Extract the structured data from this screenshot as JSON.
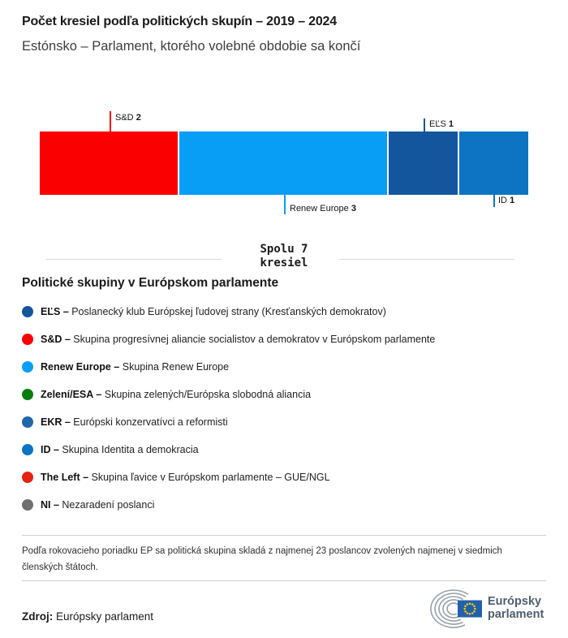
{
  "header": {
    "title": "Počet kresiel podľa politických skupín – 2019 – 2024",
    "subtitle": "Estónsko – Parlament, ktorého volebné obdobie sa končí"
  },
  "chart_data": {
    "type": "bar",
    "orientation": "horizontal-stacked",
    "title": "Počet kresiel podľa politických skupín – 2019 – 2024",
    "subtitle": "Estónsko – Parlament, ktorého volebné obdobie sa končí",
    "total_seats": 7,
    "total_label": "Spolu 7 kresiel",
    "segments": [
      {
        "group": "S&D",
        "seats": 2,
        "color": "#fa0000",
        "label_side": "top"
      },
      {
        "group": "Renew Europe",
        "seats": 3,
        "color": "#089ef5",
        "label_side": "bottom"
      },
      {
        "group": "EĽS",
        "seats": 1,
        "color": "#14569e",
        "label_side": "top"
      },
      {
        "group": "ID",
        "seats": 1,
        "color": "#0d74c4",
        "label_side": "bottom"
      }
    ]
  },
  "annotations": {
    "sd": {
      "name": "S&D",
      "value": "2"
    },
    "renew": {
      "name": "Renew Europe",
      "value": "3"
    },
    "els": {
      "name": "EĽS",
      "value": "1"
    },
    "id": {
      "name": "ID",
      "value": "1"
    }
  },
  "total": {
    "line1": "Spolu 7",
    "line2": "kresiel"
  },
  "legend": {
    "heading": "Politické skupiny v Európskom parlamente",
    "items": [
      {
        "abbr": "EĽS –",
        "desc": "Poslanecký klub Európskej ľudovej strany (Kresťanských demokratov)",
        "color": "#14569e"
      },
      {
        "abbr": "S&D –",
        "desc": "Skupina progresívnej aliancie socialistov a demokratov v Európskom parlamente",
        "color": "#fa0000"
      },
      {
        "abbr": "Renew Europe –",
        "desc": "Skupina Renew Europe",
        "color": "#089ef5"
      },
      {
        "abbr": "Zelení/ESA –",
        "desc": "Skupina zelených/Európska slobodná aliancia",
        "color": "#0a7d10"
      },
      {
        "abbr": "EKR –",
        "desc": "Európski konzervatívci a reformisti",
        "color": "#2166a9"
      },
      {
        "abbr": "ID –",
        "desc": "Skupina Identita a demokracia",
        "color": "#0d74c4"
      },
      {
        "abbr": "The Left –",
        "desc": "Skupina ľavice v Európskom parlamente – GUE/NGL",
        "color": "#e42313"
      },
      {
        "abbr": "NI –",
        "desc": "Nezaradení poslanci",
        "color": "#6f6f6f"
      }
    ]
  },
  "footer": {
    "note": "Podľa rokovacieho poriadku EP sa politická skupina skladá z najmenej 23 poslancov zvolených najmenej v siedmich členských štátoch.",
    "source_label": "Zdroj:",
    "source_value": " Európsky parlament",
    "logo_line1": "Európsky",
    "logo_line2": "parlament"
  }
}
